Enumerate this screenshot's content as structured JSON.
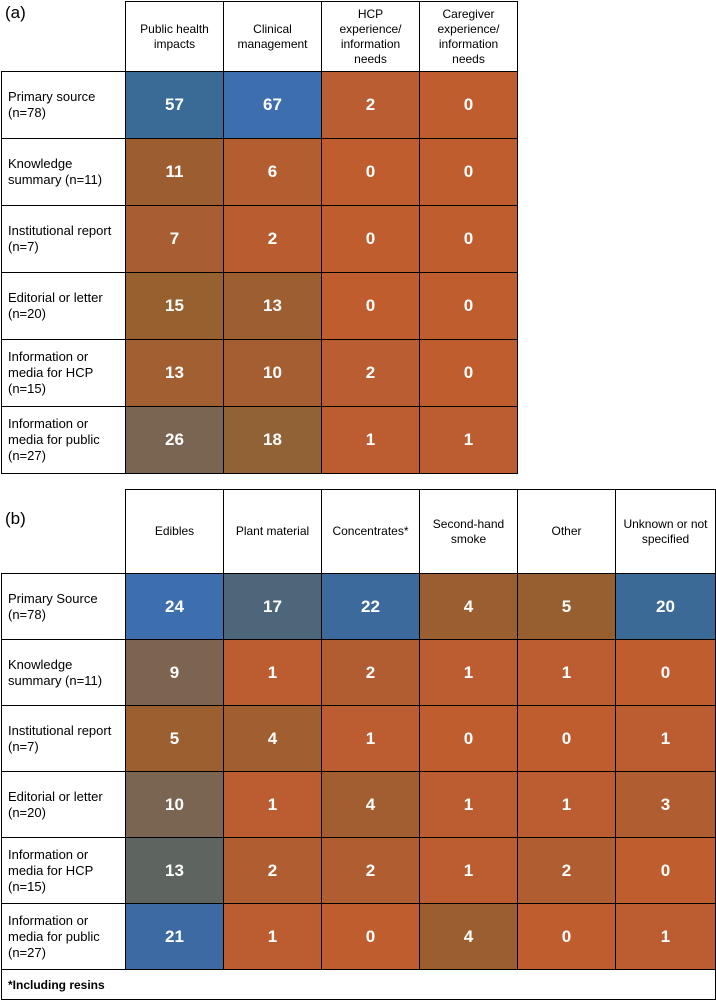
{
  "chart_data": [
    {
      "type": "heatmap",
      "panel_label": "(a)",
      "columns": [
        "Public health impacts",
        "Clinical management",
        "HCP experience/ information needs",
        "Caregiver experience/ information needs"
      ],
      "rows": [
        "Primary source (n=78)",
        "Knowledge summary (n=11)",
        "Institutional report (n=7)",
        "Editorial or letter (n=20)",
        "Information or media for HCP (n=15)",
        "Information or media for public (n=27)"
      ],
      "values": [
        [
          57,
          67,
          2,
          0
        ],
        [
          11,
          6,
          0,
          0
        ],
        [
          7,
          2,
          0,
          0
        ],
        [
          15,
          13,
          0,
          0
        ],
        [
          13,
          10,
          2,
          0
        ],
        [
          26,
          18,
          1,
          1
        ]
      ],
      "colors": [
        [
          "#3a6b97",
          "#3d6fae",
          "#bb5d33",
          "#c05d2f"
        ],
        [
          "#9c5e31",
          "#b35d31",
          "#c05d2f",
          "#c05d2f"
        ],
        [
          "#a85e32",
          "#b95d31",
          "#c05d2f",
          "#c05d2f"
        ],
        [
          "#97602f",
          "#9d5f31",
          "#c05d2f",
          "#c05d2f"
        ],
        [
          "#a25f31",
          "#a55e31",
          "#bb5d33",
          "#c05d2f"
        ],
        [
          "#7a6553",
          "#916236",
          "#bb5d30",
          "#bb5d30"
        ]
      ]
    },
    {
      "type": "heatmap",
      "panel_label": "(b)",
      "columns": [
        "Edibles",
        "Plant material",
        "Concentrates*",
        "Second-hand smoke",
        "Other",
        "Unknown or not specified"
      ],
      "rows": [
        "Primary Source (n=78)",
        "Knowledge summary (n=11)",
        "Institutional report (n=7)",
        "Editorial or letter (n=20)",
        "Information or media for HCP (n=15)",
        "Information or media for public (n=27)"
      ],
      "values": [
        [
          24,
          17,
          22,
          4,
          5,
          20
        ],
        [
          9,
          1,
          2,
          1,
          1,
          0
        ],
        [
          5,
          4,
          1,
          0,
          0,
          1
        ],
        [
          10,
          1,
          4,
          1,
          1,
          3
        ],
        [
          13,
          2,
          2,
          1,
          2,
          0
        ],
        [
          21,
          1,
          0,
          4,
          0,
          1
        ]
      ],
      "colors": [
        [
          "#3d6fae",
          "#4d6679",
          "#3d6a9d",
          "#9b5e30",
          "#975f30",
          "#3b6a97"
        ],
        [
          "#7c6450",
          "#bb5d30",
          "#b25d31",
          "#bb5d30",
          "#bb5d30",
          "#c05d2f"
        ],
        [
          "#9c5f30",
          "#a05e31",
          "#bb5d30",
          "#c05d2f",
          "#c05d2f",
          "#bb5d30"
        ],
        [
          "#7a6553",
          "#bb5d30",
          "#a25e31",
          "#bb5d30",
          "#bb5d30",
          "#b05d31"
        ],
        [
          "#5e6561",
          "#b05d31",
          "#b05d31",
          "#bb5d30",
          "#b05d31",
          "#c05d2f"
        ],
        [
          "#3d6aa3",
          "#bb5d30",
          "#c05d2f",
          "#9b5e30",
          "#c05d2f",
          "#bb5d30"
        ]
      ],
      "footnote": "*Including resins"
    }
  ]
}
